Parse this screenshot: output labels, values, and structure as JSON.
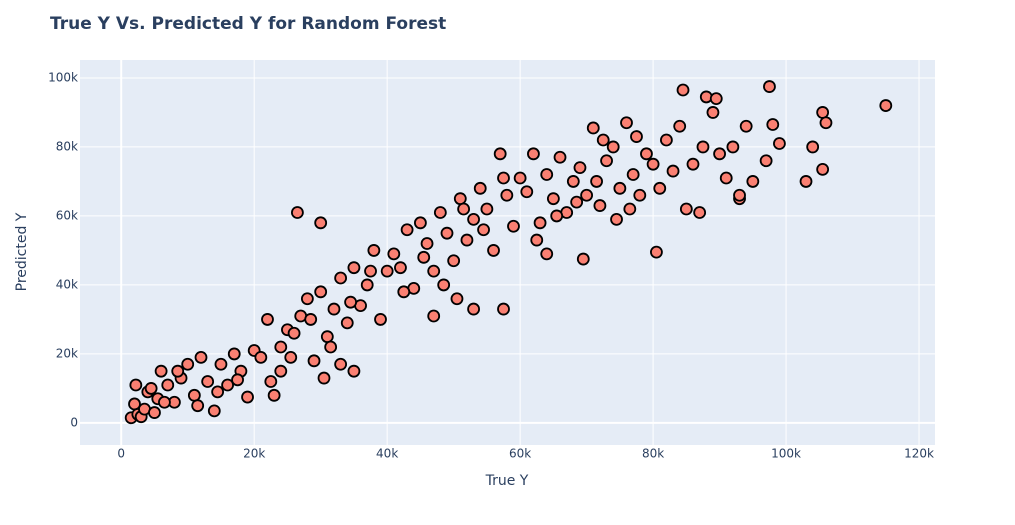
{
  "chart_data": {
    "type": "scatter",
    "title": "True Y Vs. Predicted Y for Random Forest",
    "x_label": "True Y",
    "y_label": "Predicted Y",
    "color": "#fa8072",
    "edge_color": "#000000",
    "grid": true,
    "xlim": [
      -6200,
      122400
    ],
    "ylim": [
      -6400,
      105200
    ],
    "xticks": [
      {
        "value": 0,
        "label": "0"
      },
      {
        "value": 20000,
        "label": "20k"
      },
      {
        "value": 40000,
        "label": "40k"
      },
      {
        "value": 60000,
        "label": "60k"
      },
      {
        "value": 80000,
        "label": "80k"
      },
      {
        "value": 100000,
        "label": "100k"
      },
      {
        "value": 120000,
        "label": "120k"
      }
    ],
    "yticks": [
      {
        "value": 0,
        "label": "0"
      },
      {
        "value": 20000,
        "label": "20k"
      },
      {
        "value": 40000,
        "label": "40k"
      },
      {
        "value": 60000,
        "label": "60k"
      },
      {
        "value": 80000,
        "label": "80k"
      },
      {
        "value": 100000,
        "label": "100k"
      }
    ],
    "x": [
      1500,
      2000,
      2500,
      3000,
      3500,
      4000,
      5000,
      5500,
      6000,
      7000,
      8000,
      9000,
      10000,
      11000,
      12000,
      13000,
      14000,
      15000,
      16000,
      17000,
      18000,
      19000,
      20000,
      4500,
      6500,
      2200,
      8500,
      11500,
      14500,
      17500,
      21000,
      22000,
      23000,
      24000,
      25000,
      26000,
      27000,
      28000,
      29000,
      30000,
      31000,
      32000,
      33000,
      34000,
      35000,
      36000,
      37000,
      38000,
      39000,
      40000,
      22500,
      25500,
      28500,
      31500,
      34500,
      37500,
      26500,
      30000,
      35000,
      30500,
      24000,
      33000,
      41000,
      42000,
      43000,
      44000,
      45000,
      46000,
      47000,
      48000,
      49000,
      50000,
      51000,
      52000,
      53000,
      54000,
      55000,
      56000,
      57000,
      58000,
      59000,
      60000,
      42500,
      45500,
      48500,
      51500,
      54500,
      57500,
      53000,
      57500,
      47000,
      50500,
      61000,
      62000,
      63000,
      64000,
      65000,
      66000,
      67000,
      68000,
      69000,
      70000,
      71000,
      72000,
      73000,
      74000,
      75000,
      76000,
      77000,
      78000,
      79000,
      80000,
      62500,
      65500,
      68500,
      71500,
      74500,
      77500,
      69500,
      64000,
      72500,
      76500,
      80500,
      81000,
      82000,
      83000,
      84000,
      84500,
      85000,
      86000,
      87000,
      88000,
      89000,
      90000,
      91000,
      92000,
      93000,
      94000,
      95000,
      97000,
      97500,
      98000,
      99000,
      103000,
      104000,
      105500,
      105500,
      106000,
      115000,
      87500,
      89500,
      93000
    ],
    "values": [
      1500,
      5500,
      2500,
      1800,
      4000,
      9000,
      3000,
      7000,
      15000,
      11000,
      6000,
      13000,
      17000,
      8000,
      19000,
      12000,
      3500,
      17000,
      11000,
      20000,
      15000,
      7500,
      21000,
      10000,
      6000,
      11000,
      15000,
      5000,
      9000,
      12500,
      19000,
      30000,
      8000,
      22000,
      27000,
      26000,
      31000,
      36000,
      18000,
      38000,
      25000,
      33000,
      42000,
      29000,
      45000,
      34000,
      40000,
      50000,
      30000,
      44000,
      12000,
      19000,
      30000,
      22000,
      35000,
      44000,
      61000,
      58000,
      15000,
      13000,
      15000,
      17000,
      49000,
      45000,
      56000,
      39000,
      58000,
      52000,
      44000,
      61000,
      55000,
      47000,
      65000,
      53000,
      59000,
      68000,
      62000,
      50000,
      78000,
      66000,
      57000,
      71000,
      38000,
      48000,
      40000,
      62000,
      56000,
      71000,
      33000,
      33000,
      31000,
      36000,
      67000,
      78000,
      58000,
      72000,
      65000,
      77000,
      61000,
      70000,
      74000,
      66000,
      85500,
      63000,
      76000,
      80000,
      68000,
      87000,
      72000,
      66000,
      78000,
      75000,
      53000,
      60000,
      64000,
      70000,
      59000,
      83000,
      47500,
      49000,
      82000,
      62000,
      49500,
      68000,
      82000,
      73000,
      86000,
      96500,
      62000,
      75000,
      61000,
      94500,
      90000,
      78000,
      71000,
      80000,
      65000,
      86000,
      70000,
      76000,
      97500,
      86500,
      81000,
      70000,
      80000,
      73500,
      90000,
      87000,
      92000,
      80000,
      94000,
      66000
    ]
  }
}
